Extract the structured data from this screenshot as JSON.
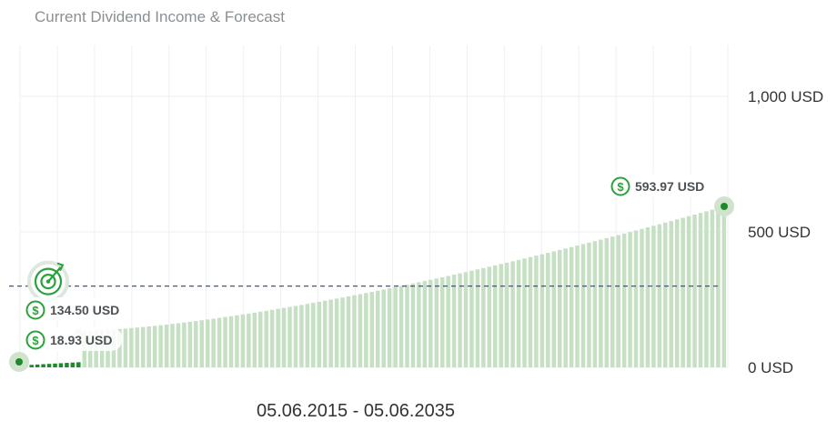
{
  "title": "Current Dividend Income & Forecast",
  "date_range": "05.06.2015 - 05.06.2035",
  "colors": {
    "bar_forecast": "#c6e0c3",
    "bar_current": "#1e8a2c",
    "accent_green": "#2aa23b",
    "target_line": "#4a5568",
    "grid": "#eef0f1"
  },
  "icons": {
    "dividend": "dollar-circle-icon",
    "target": "target-icon"
  },
  "chart_data": {
    "type": "bar",
    "ylim": [
      0,
      1000
    ],
    "y_ticks": [
      {
        "value": 0,
        "label": "0 USD"
      },
      {
        "value": 500,
        "label": "500 USD"
      },
      {
        "value": 1000,
        "label": "1,000 USD"
      }
    ],
    "x_start": "05.06.2015",
    "x_end": "05.06.2035",
    "bar_count": 120,
    "current_bar_count": 10,
    "current_values_start": 8,
    "current_values_end": 18.93,
    "forecast_start": 134.5,
    "forecast_end": 593.97,
    "target_value": 300,
    "grid": true,
    "annotations": {
      "current": "18.93 USD",
      "start_forecast": "134.50 USD",
      "end_forecast": "593.97 USD"
    }
  }
}
